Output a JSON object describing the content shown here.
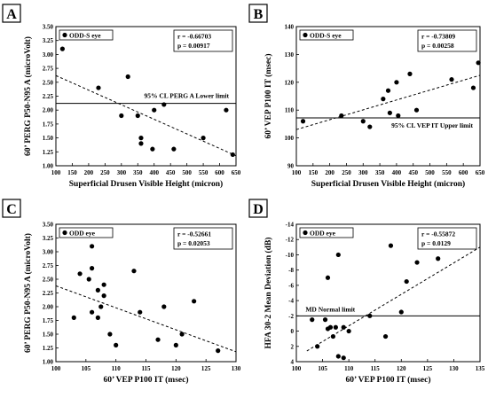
{
  "chart_data": [
    {
      "panel_label": "A",
      "type": "scatter",
      "xlabel": "Superficial Drusen Visible Height (micron)",
      "ylabel": "60’ PERG P50-N95 A (microVolt)",
      "xlim": [
        100,
        650
      ],
      "ylim": [
        1.0,
        3.5
      ],
      "xticks": [
        100,
        150,
        200,
        250,
        300,
        350,
        400,
        450,
        500,
        550,
        600,
        650
      ],
      "yticks": [
        1.0,
        1.25,
        1.5,
        1.75,
        2.0,
        2.25,
        2.5,
        2.75,
        3.0,
        3.25,
        3.5
      ],
      "ytick_labels": [
        "1.00",
        "1.25",
        "1.50",
        "1.75",
        "2.00",
        "2.25",
        "2.50",
        "2.75",
        "3.00",
        "3.25",
        "3.50"
      ],
      "legend": "ODD-S eye",
      "stats": [
        "r  =  -0.66703",
        "p  =  0.00917"
      ],
      "points": [
        [
          120,
          3.1
        ],
        [
          230,
          2.4
        ],
        [
          300,
          1.9
        ],
        [
          320,
          2.6
        ],
        [
          350,
          1.9
        ],
        [
          360,
          1.5
        ],
        [
          360,
          1.4
        ],
        [
          395,
          1.3
        ],
        [
          400,
          2.0
        ],
        [
          430,
          2.1
        ],
        [
          460,
          1.3
        ],
        [
          550,
          1.5
        ],
        [
          620,
          2.0
        ],
        [
          640,
          1.2
        ]
      ],
      "trend": [
        [
          100,
          2.62
        ],
        [
          650,
          1.18
        ]
      ],
      "hline": {
        "y": 2.12,
        "label": "95% CL PERG A Lower limit"
      }
    },
    {
      "panel_label": "B",
      "type": "scatter",
      "xlabel": "Superficial Drusen Visible Height (micron)",
      "ylabel": "60’ VEP P100 IT (msec)",
      "xlim": [
        100,
        650
      ],
      "ylim": [
        90,
        140
      ],
      "xticks": [
        100,
        150,
        200,
        250,
        300,
        350,
        400,
        450,
        500,
        550,
        600,
        650
      ],
      "yticks": [
        90,
        100,
        110,
        120,
        130,
        140
      ],
      "ytick_labels": [
        "90",
        "100",
        "110",
        "120",
        "130",
        "140"
      ],
      "legend": "ODD-S eye",
      "stats": [
        "r  =  -0.73809",
        "p  =  0.00258"
      ],
      "points": [
        [
          120,
          106
        ],
        [
          235,
          108
        ],
        [
          300,
          106
        ],
        [
          320,
          104
        ],
        [
          360,
          114
        ],
        [
          375,
          117
        ],
        [
          380,
          109
        ],
        [
          400,
          120
        ],
        [
          405,
          108
        ],
        [
          440,
          123
        ],
        [
          460,
          110
        ],
        [
          565,
          121
        ],
        [
          630,
          118
        ],
        [
          645,
          127
        ]
      ],
      "trend": [
        [
          100,
          103
        ],
        [
          650,
          122.5
        ]
      ],
      "hline": {
        "y": 107.2,
        "label": "95% CL VEP IT Upper limit"
      }
    },
    {
      "panel_label": "C",
      "type": "scatter",
      "xlabel": "60’ VEP P100 IT (msec)",
      "ylabel": "60’ PERG P50-N95 A (microVolt)",
      "xlim": [
        100,
        130
      ],
      "ylim": [
        1.0,
        3.5
      ],
      "xticks": [
        100,
        105,
        110,
        115,
        120,
        125,
        130
      ],
      "yticks": [
        1.0,
        1.25,
        1.5,
        1.75,
        2.0,
        2.25,
        2.5,
        2.75,
        3.0,
        3.25,
        3.5
      ],
      "ytick_labels": [
        "1.00",
        "1.25",
        "1.50",
        "1.75",
        "2.00",
        "2.25",
        "2.50",
        "2.75",
        "3.00",
        "3.25",
        "3.50"
      ],
      "legend": "ODD eye",
      "stats": [
        "r  =  -0.52661",
        "p  =  0.02053"
      ],
      "points": [
        [
          103,
          1.8
        ],
        [
          104,
          2.6
        ],
        [
          105.5,
          2.5
        ],
        [
          106,
          3.1
        ],
        [
          106,
          2.7
        ],
        [
          106,
          1.9
        ],
        [
          107,
          2.3
        ],
        [
          107,
          1.8
        ],
        [
          107.5,
          2.0
        ],
        [
          108,
          2.4
        ],
        [
          108,
          2.2
        ],
        [
          109,
          1.5
        ],
        [
          110,
          1.3
        ],
        [
          113,
          2.65
        ],
        [
          114,
          1.9
        ],
        [
          117,
          1.4
        ],
        [
          118,
          2.0
        ],
        [
          120,
          1.3
        ],
        [
          121,
          1.5
        ],
        [
          123,
          2.1
        ],
        [
          127,
          1.2
        ]
      ],
      "trend": [
        [
          100,
          2.38
        ],
        [
          130,
          1.18
        ]
      ],
      "hline": null
    },
    {
      "panel_label": "D",
      "type": "scatter",
      "xlabel": "60’ VEP P100 IT (msec)",
      "ylabel": "HFA 30-2 Mean Deviation (dB)",
      "xlim": [
        100,
        135
      ],
      "ylim": [
        4,
        -14
      ],
      "xticks": [
        100,
        105,
        110,
        115,
        120,
        125,
        130,
        135
      ],
      "yticks": [
        4,
        2,
        0,
        -2,
        -4,
        -6,
        -8,
        -10,
        -12,
        -14
      ],
      "ytick_labels": [
        "4",
        "2",
        "0",
        "-2",
        "-4",
        "-6",
        "-8",
        "-10",
        "-12",
        "-14"
      ],
      "legend": "ODD eye",
      "stats": [
        "r  =  -0.55872",
        "p  =  0.0129"
      ],
      "points": [
        [
          103,
          -1.5
        ],
        [
          104,
          2.0
        ],
        [
          105.5,
          -1.5
        ],
        [
          106,
          -7.0
        ],
        [
          106,
          -0.3
        ],
        [
          106.5,
          -0.5
        ],
        [
          107,
          0.7
        ],
        [
          107.5,
          -0.5
        ],
        [
          108,
          -10.0
        ],
        [
          108,
          3.3
        ],
        [
          109,
          -0.5
        ],
        [
          109,
          3.5
        ],
        [
          110,
          0
        ],
        [
          114,
          -2.0
        ],
        [
          117,
          0.7
        ],
        [
          118,
          -11.2
        ],
        [
          120,
          -2.5
        ],
        [
          121,
          -6.5
        ],
        [
          123,
          -9.0
        ],
        [
          127,
          -9.5
        ]
      ],
      "trend": [
        [
          102,
          2.6
        ],
        [
          135,
          -11.0
        ]
      ],
      "hline": {
        "y": -2.0,
        "label": "MD Normal limit"
      }
    }
  ]
}
